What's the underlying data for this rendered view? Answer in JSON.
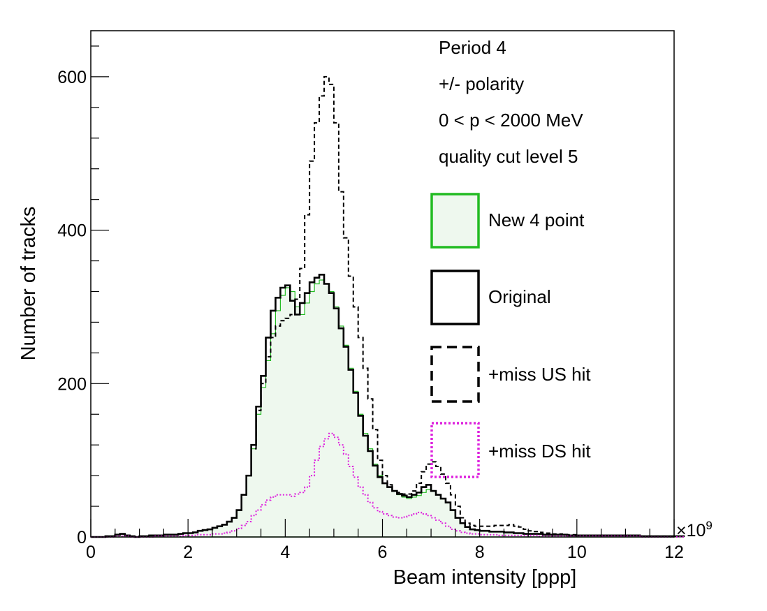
{
  "chart_data": {
    "type": "line",
    "xlabel": "Beam intensity [ppp]",
    "ylabel": "Number of tracks",
    "x_multiplier": "×10",
    "x_multiplier_exp": "9",
    "xlim": [
      0,
      12
    ],
    "ylim": [
      0,
      660
    ],
    "x_major_ticks": [
      0,
      2,
      4,
      6,
      8,
      10,
      12
    ],
    "x_tick_labels": [
      "0",
      "2",
      "4",
      "6",
      "8",
      "10",
      "12"
    ],
    "y_major_ticks": [
      0,
      200,
      400,
      600
    ],
    "y_tick_labels": [
      "0",
      "200",
      "400",
      "600"
    ],
    "bin_width": 0.1,
    "annotations": [
      "Period 4",
      "+/- polarity",
      "0 < p < 2000 MeV",
      "quality cut level 5"
    ],
    "legend_position": "right",
    "series": [
      {
        "name": "New 4 point",
        "style": "filled",
        "color": "#22bb22",
        "fill": "#eef8ee",
        "x_start": 0,
        "values": [
          0,
          0,
          0,
          1,
          1,
          3,
          4,
          2,
          1,
          0,
          1,
          1,
          2,
          2,
          2,
          3,
          3,
          3,
          4,
          5,
          5,
          6,
          8,
          9,
          10,
          12,
          14,
          16,
          20,
          25,
          35,
          55,
          80,
          115,
          160,
          195,
          230,
          265,
          295,
          315,
          325,
          320,
          300,
          290,
          305,
          320,
          330,
          335,
          330,
          320,
          300,
          275,
          250,
          220,
          190,
          160,
          135,
          115,
          95,
          80,
          70,
          65,
          60,
          55,
          52,
          50,
          52,
          54,
          58,
          62,
          60,
          55,
          50,
          45,
          35,
          25,
          18,
          13,
          10,
          9,
          8,
          8,
          7,
          7,
          7,
          6,
          6,
          5,
          5,
          4,
          4,
          4,
          4,
          3,
          3,
          3,
          3,
          3,
          2,
          2,
          2,
          2,
          2,
          2,
          2,
          2,
          2,
          2,
          2,
          2,
          2,
          2,
          2,
          1,
          1,
          1,
          1,
          1,
          1,
          1,
          1,
          1
        ]
      },
      {
        "name": "Original",
        "style": "solid",
        "color": "#000000",
        "x_start": 0,
        "values": [
          0,
          0,
          0,
          1,
          1,
          3,
          4,
          2,
          1,
          0,
          1,
          1,
          2,
          2,
          2,
          3,
          3,
          3,
          4,
          5,
          5,
          6,
          8,
          9,
          10,
          12,
          14,
          16,
          20,
          25,
          35,
          55,
          80,
          120,
          170,
          210,
          260,
          295,
          312,
          325,
          328,
          308,
          290,
          305,
          318,
          332,
          338,
          342,
          330,
          318,
          298,
          272,
          248,
          218,
          188,
          158,
          132,
          112,
          93,
          78,
          70,
          65,
          60,
          56,
          54,
          52,
          55,
          58,
          65,
          68,
          60,
          55,
          50,
          45,
          35,
          25,
          18,
          13,
          10,
          9,
          8,
          8,
          7,
          7,
          7,
          6,
          6,
          5,
          5,
          4,
          4,
          4,
          4,
          3,
          3,
          3,
          3,
          3,
          2,
          2,
          2,
          2,
          2,
          2,
          2,
          2,
          2,
          2,
          2,
          2,
          2,
          2,
          2,
          1,
          1,
          1,
          1,
          1,
          1,
          1,
          1,
          1
        ]
      },
      {
        "name": "+miss US hit",
        "style": "dashed",
        "color": "#000000",
        "x_start": 0,
        "values": [
          0,
          0,
          0,
          1,
          1,
          3,
          4,
          2,
          1,
          0,
          1,
          1,
          2,
          2,
          2,
          3,
          3,
          3,
          4,
          5,
          5,
          6,
          8,
          9,
          10,
          12,
          14,
          16,
          20,
          25,
          35,
          55,
          80,
          115,
          165,
          200,
          235,
          260,
          275,
          282,
          285,
          290,
          310,
          350,
          420,
          490,
          540,
          575,
          600,
          590,
          540,
          450,
          390,
          340,
          300,
          260,
          220,
          180,
          140,
          100,
          80,
          68,
          60,
          58,
          56,
          56,
          60,
          70,
          85,
          95,
          98,
          92,
          82,
          70,
          55,
          40,
          25,
          18,
          15,
          14,
          14,
          14,
          14,
          15,
          15,
          15,
          16,
          14,
          13,
          10,
          8,
          7,
          6,
          5,
          5,
          4,
          4,
          3,
          3,
          3,
          2,
          2,
          2,
          2,
          2,
          2,
          2,
          2,
          2,
          2,
          2,
          2,
          2,
          1,
          1,
          1,
          1,
          1,
          1,
          1,
          1,
          1
        ]
      },
      {
        "name": "+miss DS hit",
        "style": "dotted",
        "color": "#dd22dd",
        "x_start": 0,
        "values": [
          0,
          0,
          0,
          0,
          0,
          1,
          1,
          1,
          0,
          0,
          0,
          0,
          0,
          1,
          1,
          1,
          1,
          1,
          1,
          2,
          2,
          2,
          3,
          3,
          3,
          4,
          4,
          5,
          6,
          8,
          11,
          15,
          20,
          28,
          35,
          42,
          48,
          52,
          55,
          55,
          55,
          53,
          56,
          58,
          65,
          80,
          100,
          118,
          128,
          135,
          130,
          120,
          108,
          92,
          78,
          65,
          55,
          45,
          38,
          33,
          30,
          28,
          26,
          25,
          26,
          28,
          30,
          32,
          30,
          28,
          25,
          22,
          18,
          14,
          10,
          8,
          6,
          5,
          4,
          4,
          3,
          3,
          3,
          3,
          2,
          2,
          2,
          2,
          2,
          2,
          2,
          2,
          1,
          1,
          1,
          1,
          1,
          1,
          1,
          1,
          1,
          1,
          1,
          1,
          1,
          1,
          1,
          1,
          1,
          1,
          1,
          1,
          1,
          0,
          0,
          0,
          0,
          0,
          0,
          0,
          0,
          0
        ]
      }
    ]
  }
}
